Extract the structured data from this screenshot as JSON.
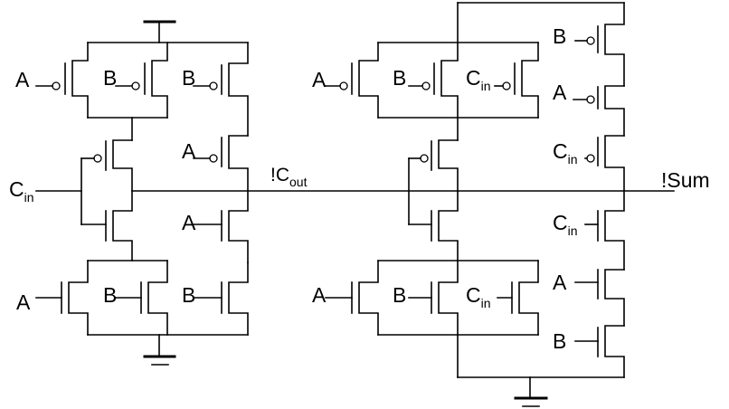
{
  "colors": {
    "wire": "#000000",
    "background": "#ffffff"
  },
  "labels": {
    "a": "A",
    "b": "B",
    "c": "C",
    "c_sub": "in",
    "cout_main": "!C",
    "cout_sub": "out",
    "sum": "!Sum"
  },
  "supply_icons": [
    "vdd-bar-icon",
    "ground-icon"
  ]
}
